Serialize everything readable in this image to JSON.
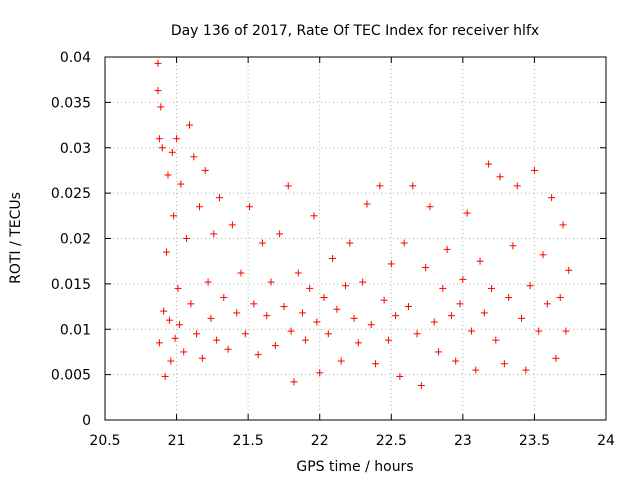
{
  "chart_data": {
    "type": "scatter",
    "title": "Day 136 of 2017, Rate Of TEC Index for receiver hlfx",
    "xlabel": "GPS time / hours",
    "ylabel": "ROTI / TECUs",
    "xlim": [
      20.5,
      24
    ],
    "ylim": [
      0,
      0.04
    ],
    "xticks": [
      20.5,
      21,
      21.5,
      22,
      22.5,
      23,
      23.5,
      24
    ],
    "yticks": [
      0,
      0.005,
      0.01,
      0.015,
      0.02,
      0.025,
      0.03,
      0.035,
      0.04
    ],
    "xtick_labels": [
      "20.5",
      "21",
      "21.5",
      "22",
      "22.5",
      "23",
      "23.5",
      "24"
    ],
    "ytick_labels": [
      "0",
      "0.005",
      "0.01",
      "0.015",
      "0.02",
      "0.025",
      "0.03",
      "0.035",
      "0.04"
    ],
    "grid": true,
    "marker": "+",
    "color": "#ff0000",
    "series": [
      {
        "name": "ROTI",
        "x": [
          20.87,
          20.87,
          20.88,
          20.88,
          20.89,
          20.9,
          20.91,
          20.92,
          20.93,
          20.94,
          20.95,
          20.96,
          20.97,
          20.98,
          20.99,
          21.0,
          21.01,
          21.02,
          21.03,
          21.05,
          21.07,
          21.09,
          21.1,
          21.12,
          21.14,
          21.16,
          21.18,
          21.2,
          21.22,
          21.24,
          21.26,
          21.28,
          21.3,
          21.33,
          21.36,
          21.39,
          21.42,
          21.45,
          21.48,
          21.51,
          21.54,
          21.57,
          21.6,
          21.63,
          21.66,
          21.69,
          21.72,
          21.75,
          21.78,
          21.8,
          21.82,
          21.85,
          21.88,
          21.9,
          21.93,
          21.96,
          21.98,
          22.0,
          22.03,
          22.06,
          22.09,
          22.12,
          22.15,
          22.18,
          22.21,
          22.24,
          22.27,
          22.3,
          22.33,
          22.36,
          22.39,
          22.42,
          22.45,
          22.48,
          22.5,
          22.53,
          22.56,
          22.59,
          22.62,
          22.65,
          22.68,
          22.71,
          22.74,
          22.77,
          22.8,
          22.83,
          22.86,
          22.89,
          22.92,
          22.95,
          22.98,
          23.0,
          23.03,
          23.06,
          23.09,
          23.12,
          23.15,
          23.18,
          23.2,
          23.23,
          23.26,
          23.29,
          23.32,
          23.35,
          23.38,
          23.41,
          23.44,
          23.47,
          23.5,
          23.53,
          23.56,
          23.59,
          23.62,
          23.65,
          23.68,
          23.7,
          23.72,
          23.74
        ],
        "y": [
          0.0393,
          0.0363,
          0.031,
          0.0085,
          0.0345,
          0.03,
          0.012,
          0.0048,
          0.0185,
          0.027,
          0.011,
          0.0065,
          0.0295,
          0.0225,
          0.009,
          0.031,
          0.0145,
          0.0105,
          0.026,
          0.0075,
          0.02,
          0.0325,
          0.0128,
          0.029,
          0.0095,
          0.0235,
          0.0068,
          0.0275,
          0.0152,
          0.0112,
          0.0205,
          0.0088,
          0.0245,
          0.0135,
          0.0078,
          0.0215,
          0.0118,
          0.0162,
          0.0095,
          0.0235,
          0.0128,
          0.0072,
          0.0195,
          0.0115,
          0.0152,
          0.0082,
          0.0205,
          0.0125,
          0.0258,
          0.0098,
          0.0042,
          0.0162,
          0.0118,
          0.0088,
          0.0145,
          0.0225,
          0.0108,
          0.0052,
          0.0135,
          0.0095,
          0.0178,
          0.0122,
          0.0065,
          0.0148,
          0.0195,
          0.0112,
          0.0085,
          0.0152,
          0.0238,
          0.0105,
          0.0062,
          0.0258,
          0.0132,
          0.0088,
          0.0172,
          0.0115,
          0.0048,
          0.0195,
          0.0125,
          0.0258,
          0.0095,
          0.0038,
          0.0168,
          0.0235,
          0.0108,
          0.0075,
          0.0145,
          0.0188,
          0.0115,
          0.0065,
          0.0128,
          0.0155,
          0.0228,
          0.0098,
          0.0055,
          0.0175,
          0.0118,
          0.0282,
          0.0145,
          0.0088,
          0.0268,
          0.0062,
          0.0135,
          0.0192,
          0.0258,
          0.0112,
          0.0055,
          0.0148,
          0.0275,
          0.0098,
          0.0182,
          0.0128,
          0.0245,
          0.0068,
          0.0135,
          0.0215,
          0.0098,
          0.0165
        ]
      }
    ]
  }
}
